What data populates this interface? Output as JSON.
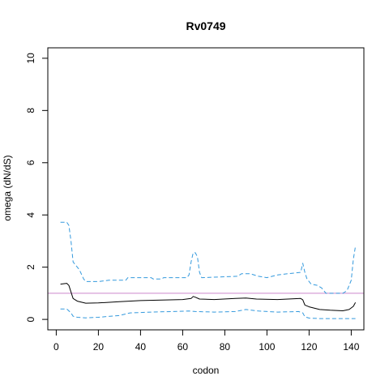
{
  "chart_data": {
    "type": "line",
    "title": "Rv0749",
    "xlabel": "codon",
    "ylabel": "omega (dN/dS)",
    "xlim": [
      -4,
      146
    ],
    "ylim": [
      -0.4,
      10.4
    ],
    "xticks": [
      0,
      20,
      40,
      60,
      80,
      100,
      120,
      140
    ],
    "yticks": [
      0,
      2,
      4,
      6,
      8,
      10
    ],
    "reference_line": {
      "y": 1,
      "color": "#cc88cc"
    },
    "series": [
      {
        "role": "upper",
        "color": "#3399dd",
        "dash": true,
        "points": [
          [
            2,
            3.72
          ],
          [
            5,
            3.72
          ],
          [
            6,
            3.6
          ],
          [
            7,
            3.0
          ],
          [
            8,
            2.2
          ],
          [
            10,
            2.0
          ],
          [
            11,
            1.9
          ],
          [
            13,
            1.55
          ],
          [
            14,
            1.45
          ],
          [
            20,
            1.45
          ],
          [
            25,
            1.5
          ],
          [
            33,
            1.5
          ],
          [
            34,
            1.6
          ],
          [
            45,
            1.6
          ],
          [
            46,
            1.55
          ],
          [
            50,
            1.55
          ],
          [
            51,
            1.6
          ],
          [
            62,
            1.6
          ],
          [
            63,
            1.7
          ],
          [
            64,
            2.2
          ],
          [
            65,
            2.55
          ],
          [
            66,
            2.55
          ],
          [
            67,
            2.4
          ],
          [
            68,
            1.8
          ],
          [
            69,
            1.6
          ],
          [
            86,
            1.65
          ],
          [
            88,
            1.75
          ],
          [
            92,
            1.75
          ],
          [
            96,
            1.65
          ],
          [
            100,
            1.6
          ],
          [
            105,
            1.7
          ],
          [
            110,
            1.75
          ],
          [
            116,
            1.8
          ],
          [
            117,
            2.15
          ],
          [
            118,
            1.8
          ],
          [
            119,
            1.55
          ],
          [
            120,
            1.45
          ],
          [
            121,
            1.35
          ],
          [
            124,
            1.3
          ],
          [
            126,
            1.2
          ],
          [
            128,
            1.0
          ],
          [
            136,
            1.0
          ],
          [
            138,
            1.1
          ],
          [
            140,
            1.5
          ],
          [
            141,
            2.3
          ],
          [
            142,
            2.8
          ]
        ]
      },
      {
        "role": "estimate",
        "color": "#000000",
        "dash": false,
        "points": [
          [
            2,
            1.35
          ],
          [
            5,
            1.38
          ],
          [
            6,
            1.3
          ],
          [
            7,
            1.05
          ],
          [
            8,
            0.8
          ],
          [
            10,
            0.7
          ],
          [
            14,
            0.62
          ],
          [
            20,
            0.63
          ],
          [
            30,
            0.68
          ],
          [
            40,
            0.72
          ],
          [
            50,
            0.74
          ],
          [
            60,
            0.76
          ],
          [
            64,
            0.8
          ],
          [
            65,
            0.88
          ],
          [
            66,
            0.85
          ],
          [
            68,
            0.78
          ],
          [
            75,
            0.76
          ],
          [
            85,
            0.8
          ],
          [
            90,
            0.82
          ],
          [
            95,
            0.78
          ],
          [
            105,
            0.76
          ],
          [
            110,
            0.78
          ],
          [
            116,
            0.8
          ],
          [
            117,
            0.75
          ],
          [
            118,
            0.55
          ],
          [
            120,
            0.48
          ],
          [
            125,
            0.38
          ],
          [
            130,
            0.35
          ],
          [
            136,
            0.33
          ],
          [
            139,
            0.38
          ],
          [
            141,
            0.5
          ],
          [
            142,
            0.65
          ]
        ]
      },
      {
        "role": "lower",
        "color": "#3399dd",
        "dash": true,
        "points": [
          [
            2,
            0.4
          ],
          [
            5,
            0.4
          ],
          [
            7,
            0.25
          ],
          [
            8,
            0.12
          ],
          [
            10,
            0.08
          ],
          [
            14,
            0.06
          ],
          [
            20,
            0.08
          ],
          [
            30,
            0.15
          ],
          [
            35,
            0.25
          ],
          [
            45,
            0.28
          ],
          [
            55,
            0.3
          ],
          [
            63,
            0.32
          ],
          [
            66,
            0.3
          ],
          [
            75,
            0.28
          ],
          [
            85,
            0.3
          ],
          [
            90,
            0.38
          ],
          [
            96,
            0.32
          ],
          [
            105,
            0.28
          ],
          [
            115,
            0.3
          ],
          [
            117,
            0.25
          ],
          [
            118,
            0.1
          ],
          [
            120,
            0.05
          ],
          [
            125,
            0.03
          ],
          [
            142,
            0.03
          ]
        ]
      }
    ]
  }
}
